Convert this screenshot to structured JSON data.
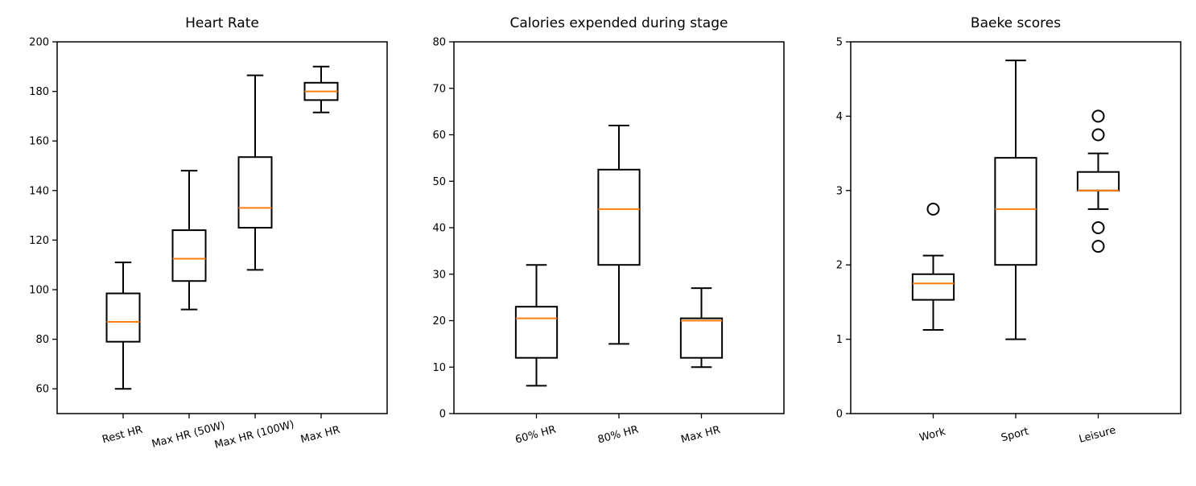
{
  "chart_data": [
    {
      "type": "box",
      "title": "Heart Rate",
      "xlabel": "",
      "ylabel": "",
      "ylim": [
        50,
        200
      ],
      "yticks": [
        60,
        80,
        100,
        120,
        140,
        160,
        180,
        200
      ],
      "categories": [
        "Rest HR",
        "Max HR (50W)",
        "Max HR (100W)",
        "Max HR"
      ],
      "boxes": [
        {
          "whislo": 60,
          "q1": 79,
          "med": 87,
          "q3": 98.5,
          "whishi": 111,
          "fliers": []
        },
        {
          "whislo": 92,
          "q1": 103.5,
          "med": 112.5,
          "q3": 124,
          "whishi": 148,
          "fliers": []
        },
        {
          "whislo": 108,
          "q1": 125,
          "med": 133,
          "q3": 153.5,
          "whishi": 186.5,
          "fliers": []
        },
        {
          "whislo": 171.5,
          "q1": 176.5,
          "med": 180,
          "q3": 183.5,
          "whishi": 190,
          "fliers": []
        }
      ]
    },
    {
      "type": "box",
      "title": "Calories expended during stage",
      "xlabel": "",
      "ylabel": "",
      "ylim": [
        0,
        80
      ],
      "yticks": [
        0,
        10,
        20,
        30,
        40,
        50,
        60,
        70,
        80
      ],
      "categories": [
        "60% HR",
        "80% HR",
        "Max HR"
      ],
      "boxes": [
        {
          "whislo": 6,
          "q1": 12,
          "med": 20.5,
          "q3": 23,
          "whishi": 32,
          "fliers": []
        },
        {
          "whislo": 15,
          "q1": 32,
          "med": 44,
          "q3": 52.5,
          "whishi": 62,
          "fliers": []
        },
        {
          "whislo": 10,
          "q1": 12,
          "med": 20,
          "q3": 20.5,
          "whishi": 27,
          "fliers": []
        }
      ]
    },
    {
      "type": "box",
      "title": "Baeke scores",
      "xlabel": "",
      "ylabel": "",
      "ylim": [
        0,
        5
      ],
      "yticks": [
        0,
        1,
        2,
        3,
        4,
        5
      ],
      "categories": [
        "Work",
        "Sport",
        "Leisure"
      ],
      "boxes": [
        {
          "whislo": 1.125,
          "q1": 1.53,
          "med": 1.75,
          "q3": 1.875,
          "whishi": 2.125,
          "fliers": [
            2.75
          ]
        },
        {
          "whislo": 1,
          "q1": 2,
          "med": 2.75,
          "q3": 3.44,
          "whishi": 4.75,
          "fliers": []
        },
        {
          "whislo": 2.75,
          "q1": 3,
          "med": 3,
          "q3": 3.25,
          "whishi": 3.5,
          "fliers": [
            4.0,
            3.75,
            2.5,
            2.25
          ]
        }
      ]
    }
  ],
  "colors": {
    "box": "#000000",
    "median": "#ff7f0e",
    "flier": "#000000",
    "background": "#ffffff"
  }
}
